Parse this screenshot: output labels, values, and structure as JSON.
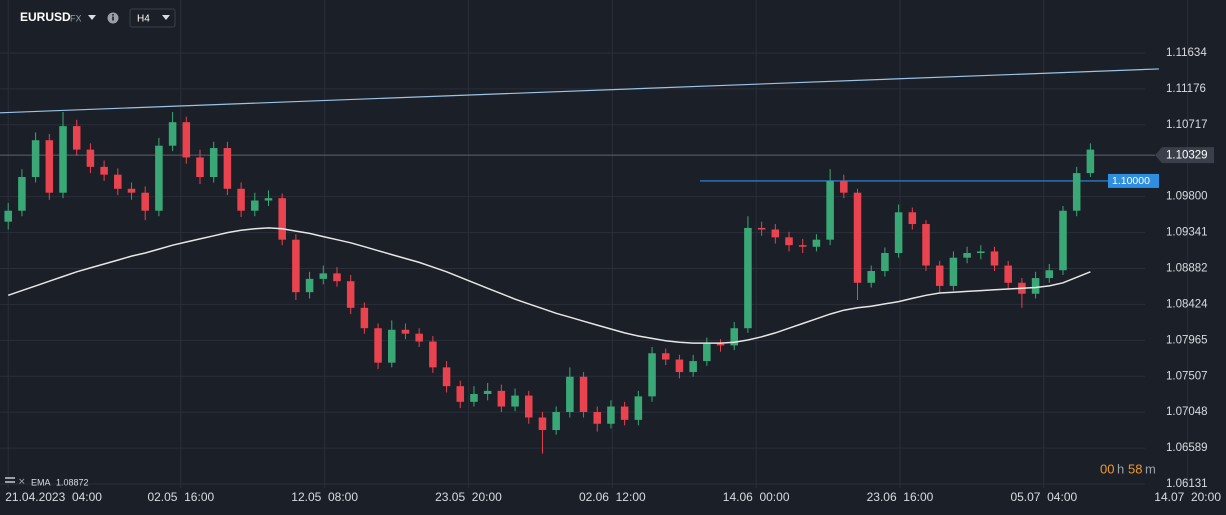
{
  "chart_data": {
    "type": "candlestick",
    "symbol": "EURUSD",
    "market": "FX",
    "timeframe": "H4",
    "up_color": "#3aa876",
    "down_color": "#e8434f",
    "open": [
      1.0948,
      1.0962,
      1.1005,
      1.1052,
      1.0985,
      1.107,
      1.104,
      1.1018,
      1.1008,
      1.099,
      1.0985,
      1.0962,
      1.1045,
      1.1075,
      1.103,
      1.1005,
      1.1042,
      1.099,
      1.0962,
      1.0975,
      1.0978,
      1.0925,
      1.0858,
      1.0875,
      1.0882,
      1.0872,
      1.0838,
      1.0812,
      1.0768,
      1.081,
      1.0805,
      1.0795,
      1.0762,
      1.0738,
      1.0718,
      1.0728,
      1.0732,
      1.0712,
      1.0726,
      1.0698,
      1.0682,
      1.0705,
      1.075,
      1.0705,
      1.069,
      1.0712,
      1.0695,
      1.0725,
      1.078,
      1.0772,
      1.0756,
      1.077,
      1.0792,
      1.079,
      1.0812,
      1.094,
      1.0938,
      1.0928,
      1.0918,
      1.0916,
      1.0925,
      1.1,
      1.0985,
      1.087,
      1.0885,
      1.0908,
      1.096,
      1.0945,
      1.0892,
      1.0866,
      1.0902,
      1.0908,
      1.091,
      1.0892,
      1.087,
      1.0856,
      1.0876,
      1.0886,
      1.0962,
      1.101
    ],
    "high": [
      1.0972,
      1.1015,
      1.1062,
      1.106,
      1.1088,
      1.1078,
      1.1048,
      1.1026,
      1.1016,
      1.0998,
      1.0993,
      1.1055,
      1.1088,
      1.1082,
      1.104,
      1.105,
      1.105,
      1.0998,
      1.0985,
      1.0988,
      1.0984,
      1.0932,
      1.0884,
      1.0892,
      1.089,
      1.088,
      1.0845,
      1.0818,
      1.0822,
      1.0818,
      1.0812,
      1.0802,
      1.077,
      1.0745,
      1.0738,
      1.0742,
      1.074,
      1.0735,
      1.0732,
      1.0705,
      1.0712,
      1.0762,
      1.0756,
      1.0712,
      1.072,
      1.0718,
      1.0732,
      1.0788,
      1.0786,
      1.0778,
      1.0778,
      1.08,
      1.0798,
      1.082,
      1.0955,
      1.0948,
      1.0945,
      1.0935,
      1.0926,
      1.0932,
      1.1015,
      1.1008,
      1.099,
      1.0892,
      1.0915,
      1.097,
      1.0966,
      1.095,
      1.0898,
      1.091,
      1.0916,
      1.0918,
      1.0916,
      1.0898,
      1.0876,
      1.0884,
      1.0894,
      1.0968,
      1.1018,
      1.1048
    ],
    "low": [
      1.0938,
      1.0955,
      1.0998,
      1.0976,
      1.0978,
      1.1032,
      1.101,
      1.1,
      1.0982,
      1.0976,
      1.095,
      1.0955,
      1.1038,
      1.1022,
      1.0996,
      1.0998,
      1.0982,
      1.0954,
      1.0955,
      1.0968,
      1.0918,
      1.0848,
      1.085,
      1.0868,
      1.0865,
      1.083,
      1.0805,
      1.076,
      1.0762,
      1.0798,
      1.0788,
      1.0755,
      1.073,
      1.071,
      1.0712,
      1.072,
      1.0705,
      1.0706,
      1.069,
      1.0652,
      1.0676,
      1.0698,
      1.0698,
      1.068,
      1.0684,
      1.0688,
      1.0688,
      1.0718,
      1.0765,
      1.0748,
      1.075,
      1.0764,
      1.0782,
      1.0784,
      1.0806,
      1.093,
      1.092,
      1.091,
      1.0908,
      1.091,
      1.0918,
      1.0978,
      1.0848,
      1.0864,
      1.0878,
      1.0902,
      1.0938,
      1.0885,
      1.0858,
      1.086,
      1.0895,
      1.09,
      1.0885,
      1.0862,
      1.0838,
      1.085,
      1.087,
      1.088,
      1.0955,
      1.1005
    ],
    "close": [
      1.0962,
      1.1005,
      1.1052,
      1.0985,
      1.107,
      1.104,
      1.1018,
      1.1008,
      1.099,
      1.0985,
      1.0962,
      1.1045,
      1.1075,
      1.103,
      1.1005,
      1.1042,
      1.099,
      1.0962,
      1.0975,
      1.0978,
      1.0925,
      1.0858,
      1.0875,
      1.0882,
      1.0872,
      1.0838,
      1.0812,
      1.0768,
      1.081,
      1.0805,
      1.0795,
      1.0762,
      1.0738,
      1.0718,
      1.0728,
      1.0732,
      1.0712,
      1.0726,
      1.0698,
      1.0682,
      1.0705,
      1.075,
      1.0705,
      1.069,
      1.0712,
      1.0695,
      1.0725,
      1.078,
      1.0772,
      1.0756,
      1.077,
      1.0792,
      1.079,
      1.0812,
      1.094,
      1.0938,
      1.0928,
      1.0918,
      1.0916,
      1.0925,
      1.1,
      1.0985,
      1.087,
      1.0885,
      1.0908,
      1.096,
      1.0945,
      1.0892,
      1.0866,
      1.0902,
      1.0908,
      1.091,
      1.0892,
      1.087,
      1.0856,
      1.0876,
      1.0886,
      1.0962,
      1.101,
      1.104
    ],
    "indicators": [
      {
        "name": "EMA",
        "value": 1.08872,
        "color": "#e6e6e6",
        "values": [
          1.0854,
          1.086,
          1.0866,
          1.0872,
          1.0878,
          1.0884,
          1.0889,
          1.0894,
          1.0899,
          1.0904,
          1.0908,
          1.0913,
          1.0918,
          1.0922,
          1.0926,
          1.093,
          1.0934,
          1.0937,
          1.0939,
          1.094,
          1.0939,
          1.0936,
          1.0933,
          1.0929,
          1.0925,
          1.0921,
          1.0916,
          1.0911,
          1.0906,
          1.0901,
          1.0896,
          1.089,
          1.0884,
          1.0877,
          1.087,
          1.0863,
          1.0856,
          1.0849,
          1.0843,
          1.0837,
          1.0831,
          1.0826,
          1.0821,
          1.0816,
          1.0811,
          1.0806,
          1.0802,
          1.0799,
          1.0796,
          1.0794,
          1.0793,
          1.0793,
          1.0793,
          1.0794,
          1.0797,
          1.0801,
          1.0806,
          1.0812,
          1.0818,
          1.0824,
          1.083,
          1.0835,
          1.0838,
          1.084,
          1.0843,
          1.0846,
          1.085,
          1.0854,
          1.0857,
          1.0858,
          1.0859,
          1.086,
          1.0861,
          1.0862,
          1.0863,
          1.0864,
          1.0866,
          1.087,
          1.0877,
          1.0884
        ]
      }
    ],
    "trendline": {
      "x": [
        -0.6,
        84
      ],
      "values": [
        1.1087,
        1.1143
      ],
      "color": "#9cc3e6"
    },
    "level": {
      "value": {
        "value": 1.1,
        "label": "1.10000"
      },
      "x": [
        50.5,
        80.5
      ],
      "color": "#2f8ee0"
    },
    "last_price": 1.10329,
    "timer": [
      "00",
      "h",
      "58",
      "m"
    ],
    "xlim": [
      -0.6,
      88.9
    ],
    "ylim": [
      1.0608,
      1.1231
    ],
    "yticks": [
      1.11634,
      1.11176,
      1.10717,
      {
        "value": 1.098,
        "label": "1.09800"
      },
      1.09341,
      1.08882,
      1.08424,
      1.07965,
      1.07507,
      1.07048,
      1.06589,
      1.06131
    ],
    "xticks": [
      {
        "value": 0,
        "label": "21.04.2023  04:00"
      },
      {
        "value": 12.6,
        "label": "02.05  16:00"
      },
      {
        "value": 23.1,
        "label": "12.05  08:00"
      },
      {
        "value": 33.6,
        "label": "23.05  20:00"
      },
      {
        "value": 44.1,
        "label": "02.06  12:00"
      },
      {
        "value": 54.6,
        "label": "14.06  00:00"
      },
      {
        "value": 65.1,
        "label": "23.06  16:00"
      },
      {
        "value": 75.6,
        "label": "05.07  04:00"
      },
      {
        "value": 86.1,
        "label": "14.07  20:00"
      }
    ],
    "grid": true
  }
}
